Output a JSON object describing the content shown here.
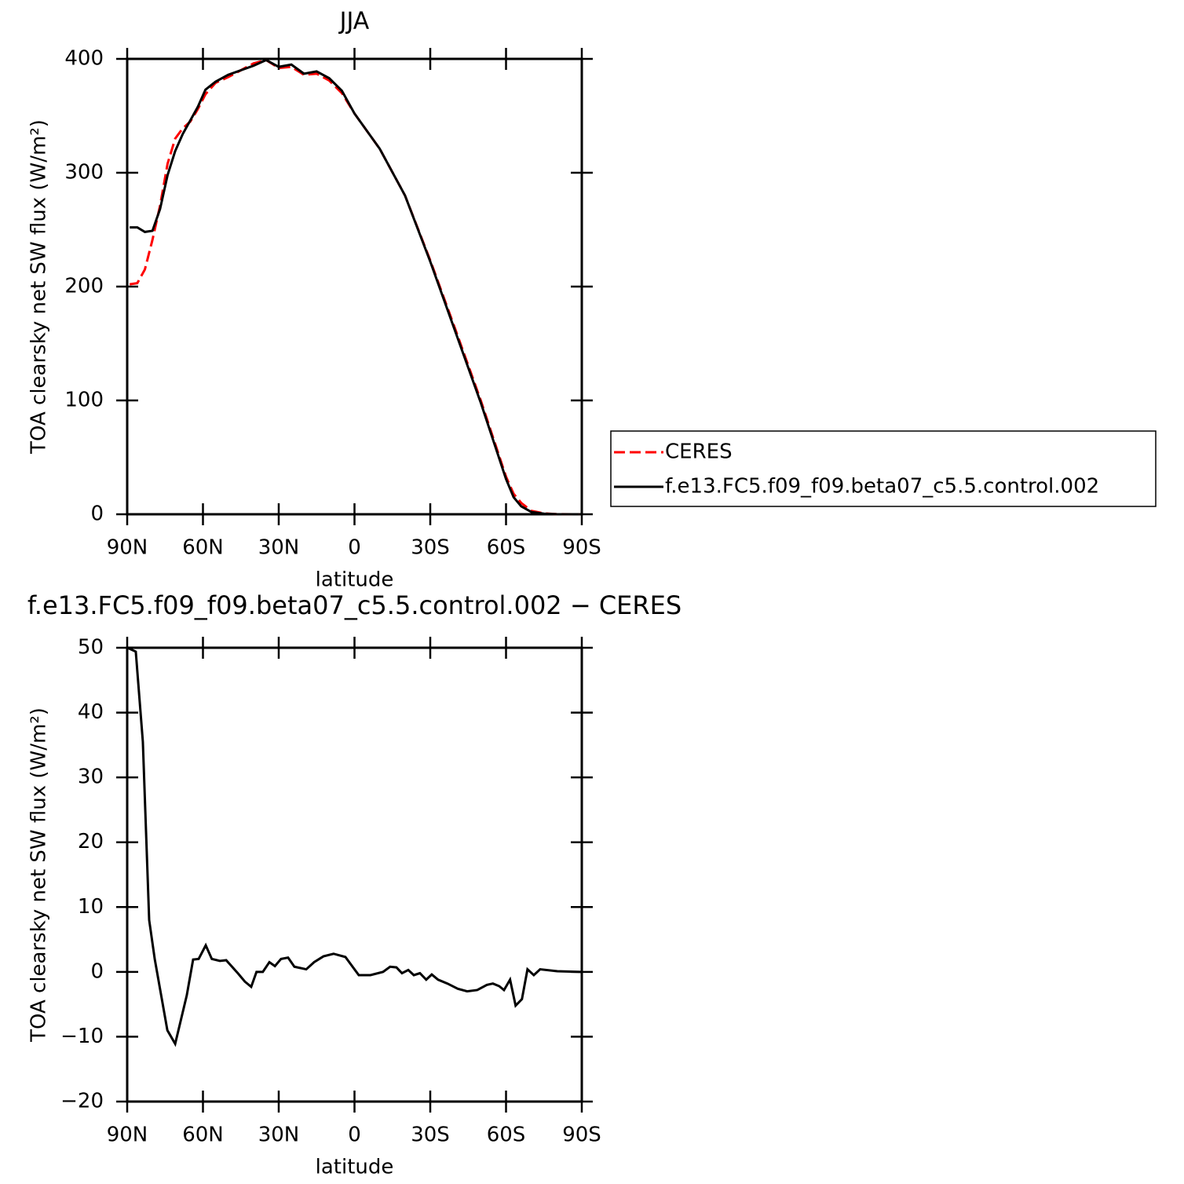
{
  "chart_data": [
    {
      "type": "line",
      "title": "JJA",
      "x_label": "latitude",
      "y_label": "TOA clearsky net SW flux (W/m²)",
      "xlim": [
        90,
        -90
      ],
      "xticks": [
        {
          "value": 90,
          "label": "90N"
        },
        {
          "value": 60,
          "label": "60N"
        },
        {
          "value": 30,
          "label": "30N"
        },
        0,
        {
          "value": -30,
          "label": "30S"
        },
        {
          "value": -60,
          "label": "60S"
        },
        {
          "value": -90,
          "label": "90S"
        }
      ],
      "ylim": [
        0,
        400
      ],
      "yticks": [
        0,
        100,
        200,
        300,
        400
      ],
      "legend": "right",
      "x": [
        89,
        86,
        83,
        80,
        77,
        74,
        71,
        68,
        65,
        62,
        59,
        55,
        50,
        45,
        40,
        35,
        30,
        25,
        20,
        15,
        10,
        5,
        0,
        -10,
        -20,
        -30,
        -40,
        -50,
        -60,
        -63,
        -66,
        -70,
        -75,
        -80,
        -89
      ],
      "series": [
        {
          "name": "CERES",
          "color": "#ff0000",
          "style": "dashed",
          "values": [
            202,
            203,
            215,
            241,
            271,
            308,
            330,
            339,
            345,
            356,
            369,
            379,
            384,
            390,
            396,
            399,
            392,
            393,
            386,
            387,
            381,
            370,
            352,
            321,
            280,
            223,
            162,
            100,
            33,
            18,
            10,
            3,
            0.8,
            0.1,
            0
          ]
        },
        {
          "name": "f.e13.FC5.f09_f09.beta07_c5.5.control.002",
          "color": "#000000",
          "style": "solid",
          "values": [
            252,
            252,
            248,
            249,
            268,
            298,
            319,
            334,
            346,
            358,
            373,
            380,
            386,
            390,
            394,
            399,
            393,
            395,
            387,
            389,
            383,
            372,
            352,
            321,
            280,
            222,
            160,
            98,
            31,
            15,
            7,
            2,
            0.5,
            0.1,
            0
          ]
        }
      ]
    },
    {
      "type": "line",
      "title": "f.e13.FC5.f09_f09.beta07_c5.5.control.002 − CERES",
      "x_label": "latitude",
      "y_label": "TOA clearsky net SW flux (W/m²)",
      "xlim": [
        90,
        -90
      ],
      "xticks": [
        {
          "value": 90,
          "label": "90N"
        },
        {
          "value": 60,
          "label": "60N"
        },
        {
          "value": 30,
          "label": "30N"
        },
        0,
        {
          "value": -30,
          "label": "30S"
        },
        {
          "value": -60,
          "label": "60S"
        },
        {
          "value": -90,
          "label": "90S"
        }
      ],
      "ylim": [
        -20,
        50
      ],
      "yticks": [
        {
          "value": -20,
          "label": "−20"
        },
        {
          "value": -10,
          "label": "−10"
        },
        0,
        10,
        20,
        30,
        40,
        50
      ],
      "x": [
        89.9,
        86.6,
        83.8,
        81.3,
        79.1,
        74.1,
        71.0,
        66.4,
        63.9,
        61.7,
        58.9,
        56.5,
        53.3,
        50.8,
        46.2,
        43.4,
        40.9,
        38.8,
        36.3,
        33.7,
        31.5,
        29.1,
        26.3,
        23.8,
        19.1,
        16.0,
        12.3,
        8.3,
        3.6,
        -1.7,
        -6.3,
        -11.3,
        -14.1,
        -16.6,
        -18.8,
        -21.3,
        -23.5,
        -25.9,
        -28.4,
        -30.6,
        -33.1,
        -36.8,
        -40.9,
        -44.6,
        -48.6,
        -52.4,
        -54.8,
        -57.3,
        -59.2,
        -61.6,
        -63.8,
        -66.3,
        -68.5,
        -71.0,
        -73.5,
        -80.3,
        -89.6
      ],
      "series": [
        {
          "color": "#000000",
          "style": "solid",
          "values": [
            50,
            49.4,
            35.5,
            8,
            2,
            -9,
            -11.1,
            -3.6,
            1.9,
            2,
            4.1,
            2,
            1.7,
            1.8,
            -0.2,
            -1.5,
            -2.3,
            0,
            0,
            1.5,
            0.9,
            2,
            2.2,
            0.8,
            0.4,
            1.5,
            2.4,
            2.8,
            2.3,
            -0.5,
            -0.5,
            0,
            0.8,
            0.7,
            -0.2,
            0.3,
            -0.5,
            -0.2,
            -1.2,
            -0.4,
            -1.2,
            -1.8,
            -2.6,
            -3,
            -2.8,
            -2,
            -1.8,
            -2.2,
            -2.8,
            -1.2,
            -5.2,
            -4.2,
            0.4,
            -0.5,
            0.4,
            0.1,
            0
          ]
        }
      ]
    }
  ]
}
